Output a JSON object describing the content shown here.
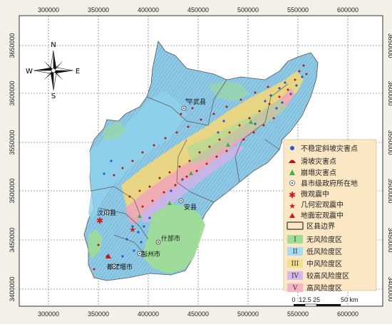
{
  "axes": {
    "x_ticks": [
      "300000",
      "350000",
      "400000",
      "450000",
      "500000",
      "550000",
      "600000"
    ],
    "y_ticks": [
      "3650000",
      "3600000",
      "3550000",
      "3500000",
      "3450000",
      "3400000"
    ]
  },
  "compass": {
    "n": "N",
    "s": "S",
    "e": "E",
    "w": "W",
    "icon": "north-arrow-compass-icon"
  },
  "cities": [
    "平武县",
    "安县",
    "汶川县",
    "什邡市",
    "彭州市",
    "都江堰市"
  ],
  "legend": {
    "symbols": [
      {
        "label": "不稳定斜坡灾害点",
        "icon": "blue-circle-icon",
        "color": "#1f5bd6"
      },
      {
        "label": "滑坡灾害点",
        "icon": "red-landslide-icon",
        "color": "#b8151b"
      },
      {
        "label": "崩塌灾害点",
        "icon": "green-triangle-icon",
        "color": "#3fb13f"
      },
      {
        "label": "县市级政府所在地",
        "icon": "double-circle-icon",
        "color": "#555555"
      },
      {
        "label": "微观震中",
        "icon": "red-asterisk-icon",
        "color": "#d4161b"
      },
      {
        "label": "几何宏观震中",
        "icon": "red-star-icon",
        "color": "#d4161b"
      },
      {
        "label": "地面宏观震中",
        "icon": "red-triangle-icon",
        "color": "#d4161b"
      }
    ],
    "boundary_label": "区县边界",
    "zones": [
      {
        "roman": "I",
        "label": "无风险度区",
        "color": "#9fdc96"
      },
      {
        "roman": "II",
        "label": "低风险度区",
        "color": "#a8dcf2"
      },
      {
        "roman": "III",
        "label": "中风险度区",
        "color": "#f4df8c"
      },
      {
        "roman": "IV",
        "label": "较高风险度区",
        "color": "#d6b8ec"
      },
      {
        "roman": "V",
        "label": "高风险度区",
        "color": "#f5b4c2"
      }
    ],
    "scale_labels": [
      "0",
      "12.5",
      "25",
      "50 km"
    ]
  }
}
